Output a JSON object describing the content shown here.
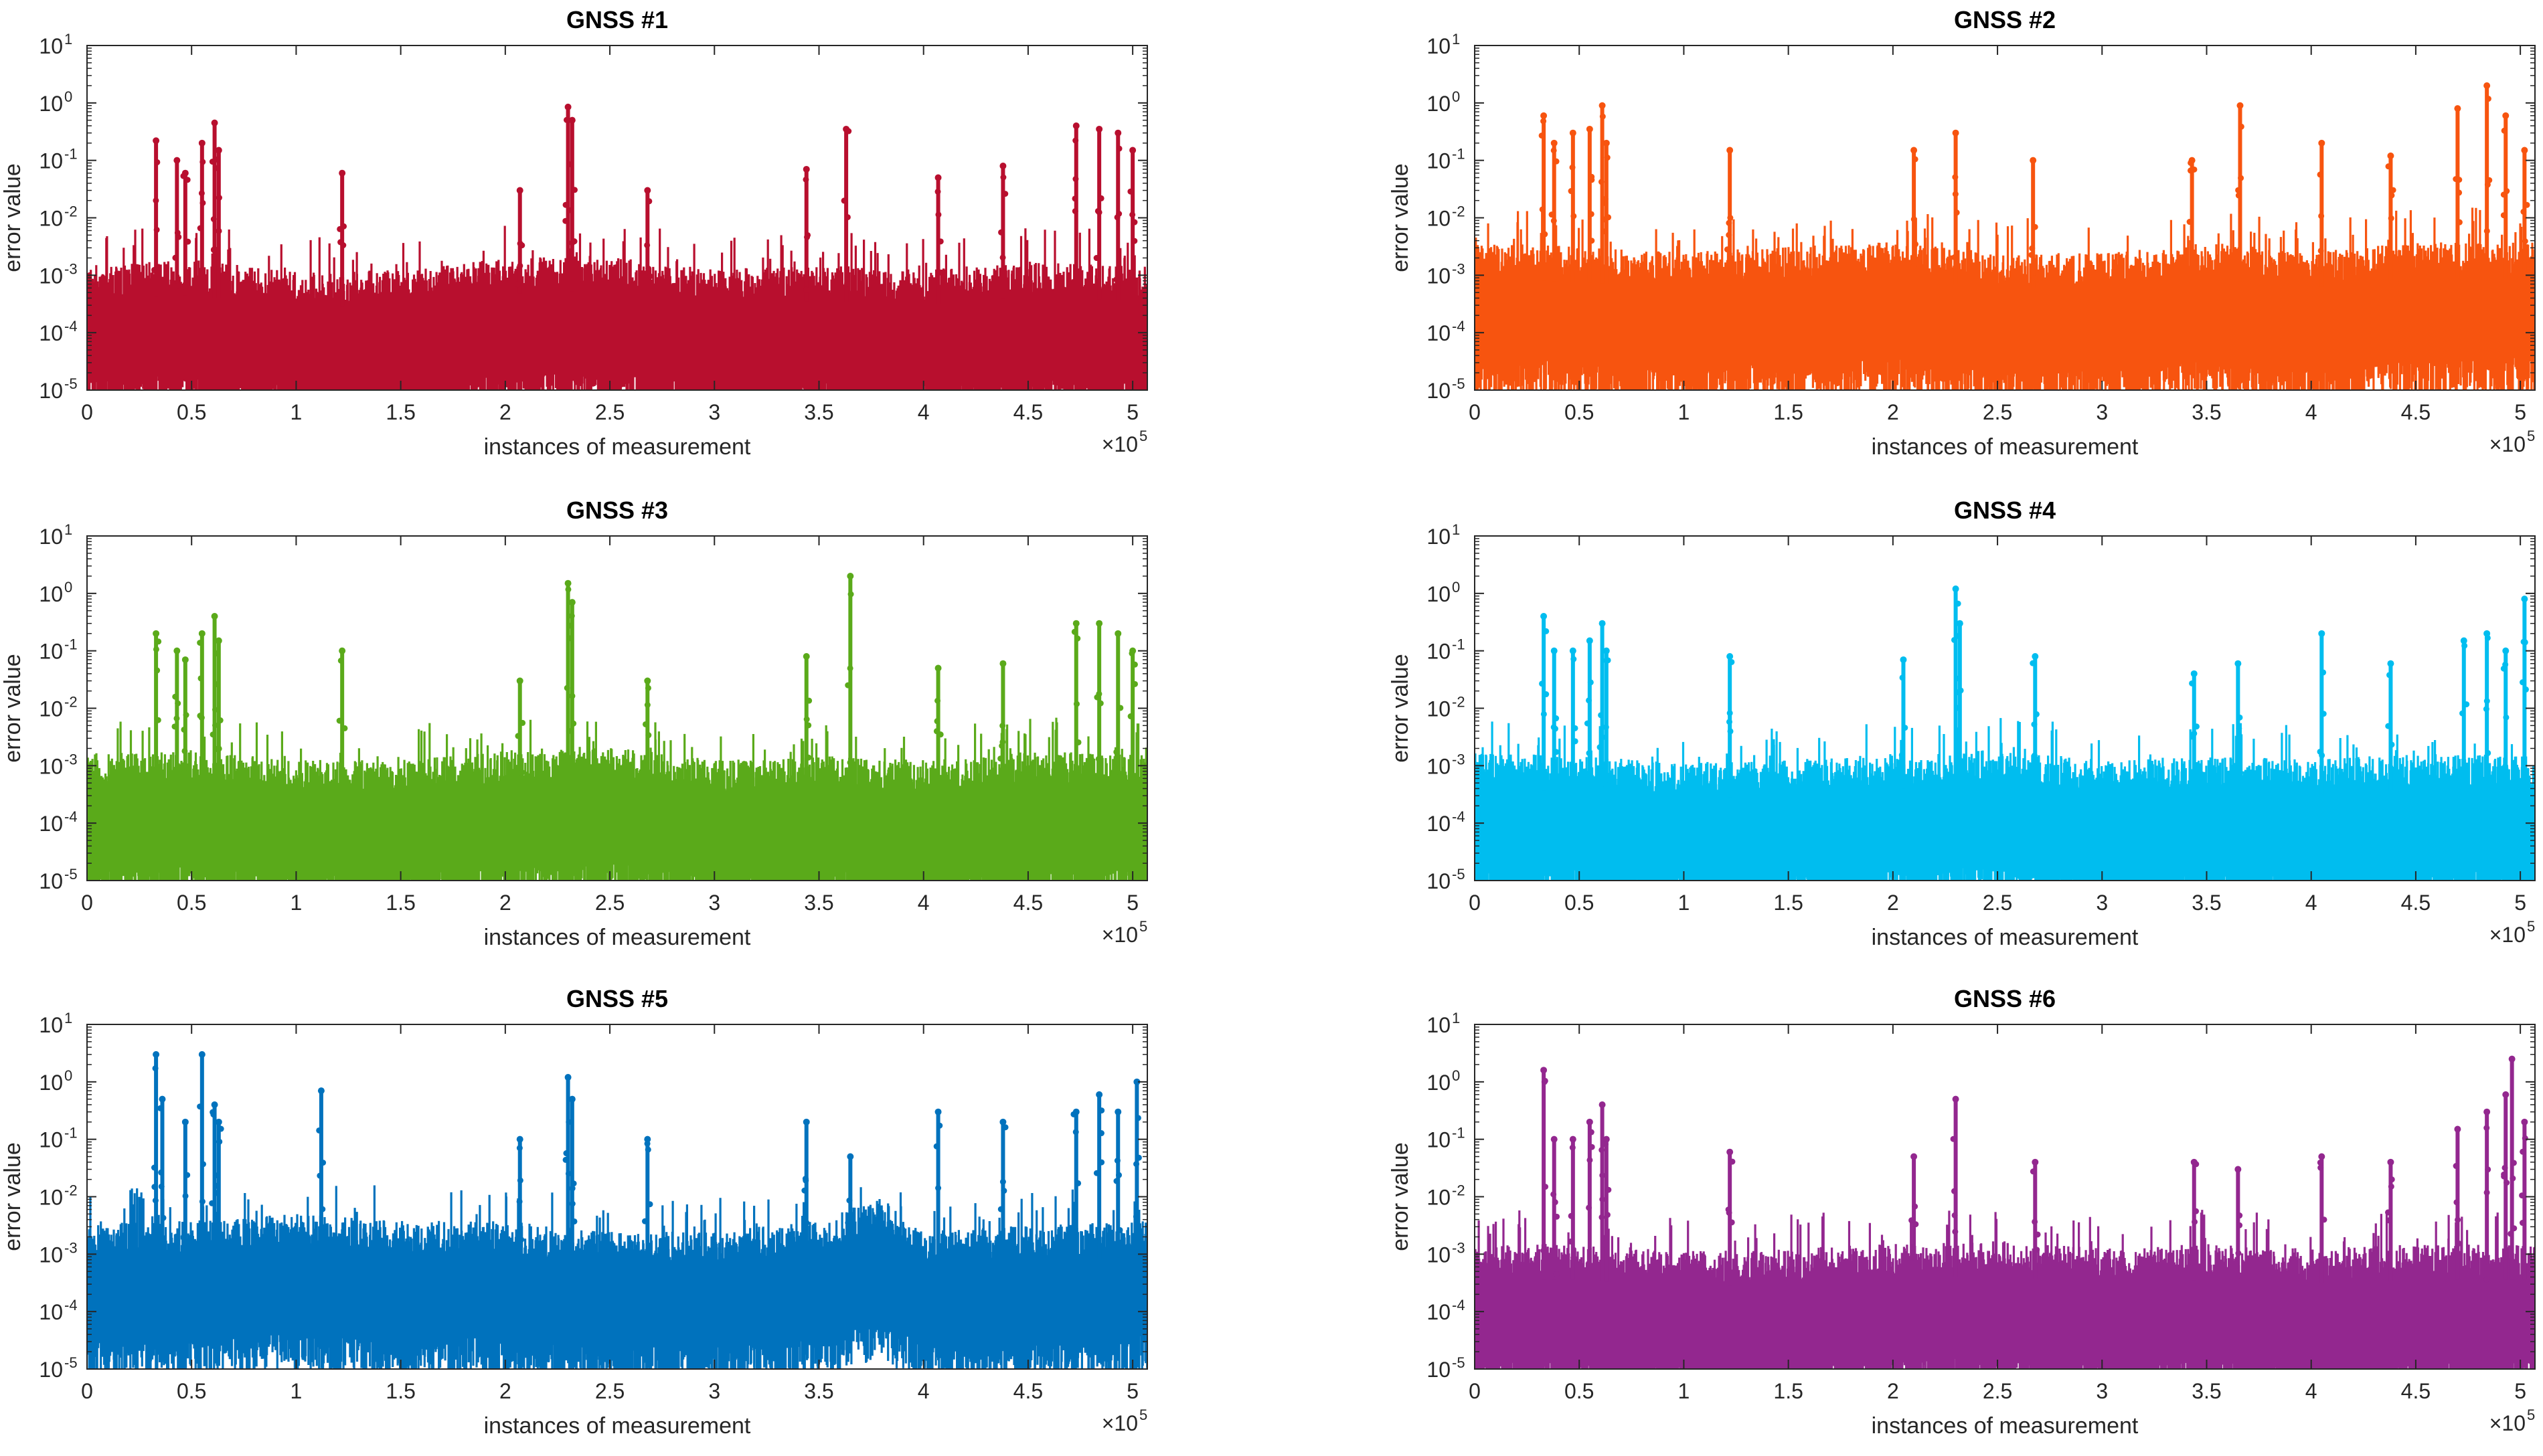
{
  "chart_data": [
    {
      "type": "scatter",
      "title": "GNSS #1",
      "color": "#b80f2e",
      "xlabel": "instances of measurement",
      "ylabel": "error value",
      "xlim": [
        0,
        507000
      ],
      "ylim": [
        1e-05,
        10
      ],
      "yscale": "log",
      "x_multiplier_label": "×10",
      "x_multiplier_exponent": "5",
      "x_tick_labels": [
        "0",
        "0.5",
        "1",
        "1.5",
        "2",
        "2.5",
        "3",
        "3.5",
        "4",
        "4.5",
        "5"
      ],
      "y_tick_labels": [
        {
          "base": "10",
          "exp": "-5"
        },
        {
          "base": "10",
          "exp": "-4"
        },
        {
          "base": "10",
          "exp": "-3"
        },
        {
          "base": "10",
          "exp": "-2"
        },
        {
          "base": "10",
          "exp": "-1"
        },
        {
          "base": "10",
          "exp": "0"
        },
        {
          "base": "10",
          "exp": "1"
        }
      ],
      "bands": [
        [
          0,
          0.00012
        ],
        [
          50000,
          0.00015
        ],
        [
          100000,
          9e-05
        ],
        [
          150000,
          0.0001
        ],
        [
          200000,
          0.00016
        ],
        [
          250000,
          0.00018
        ],
        [
          300000,
          0.0001
        ],
        [
          350000,
          0.00012
        ],
        [
          400000,
          0.0001
        ],
        [
          450000,
          0.00014
        ],
        [
          507000,
          0.00012
        ]
      ],
      "spikes": [
        [
          33000,
          0.22
        ],
        [
          43000,
          0.1
        ],
        [
          47000,
          0.06
        ],
        [
          55000,
          0.2
        ],
        [
          61000,
          0.45
        ],
        [
          63000,
          0.15
        ],
        [
          122000,
          0.06
        ],
        [
          207000,
          0.03
        ],
        [
          230000,
          0.85
        ],
        [
          232000,
          0.5
        ],
        [
          268000,
          0.03
        ],
        [
          344000,
          0.07
        ],
        [
          363000,
          0.35
        ],
        [
          407000,
          0.05
        ],
        [
          438000,
          0.08
        ],
        [
          473000,
          0.4
        ],
        [
          484000,
          0.35
        ],
        [
          493000,
          0.3
        ],
        [
          500000,
          0.15
        ]
      ]
    },
    {
      "type": "scatter",
      "title": "GNSS #2",
      "color": "#f7540f",
      "xlabel": "instances of measurement",
      "ylabel": "error value",
      "xlim": [
        0,
        507000
      ],
      "ylim": [
        1e-05,
        10
      ],
      "yscale": "log",
      "x_multiplier_label": "×10",
      "x_multiplier_exponent": "5",
      "x_tick_labels": [
        "0",
        "0.5",
        "1",
        "1.5",
        "2",
        "2.5",
        "3",
        "3.5",
        "4",
        "4.5",
        "5"
      ],
      "y_tick_labels": [
        {
          "base": "10",
          "exp": "-5"
        },
        {
          "base": "10",
          "exp": "-4"
        },
        {
          "base": "10",
          "exp": "-3"
        },
        {
          "base": "10",
          "exp": "-2"
        },
        {
          "base": "10",
          "exp": "-1"
        },
        {
          "base": "10",
          "exp": "0"
        },
        {
          "base": "10",
          "exp": "1"
        }
      ],
      "bands": [
        [
          0,
          0.0003
        ],
        [
          50000,
          0.00025
        ],
        [
          100000,
          0.0002
        ],
        [
          150000,
          0.00025
        ],
        [
          200000,
          0.0003
        ],
        [
          250000,
          0.0002
        ],
        [
          300000,
          0.0002
        ],
        [
          350000,
          0.0003
        ],
        [
          400000,
          0.0002
        ],
        [
          450000,
          0.0003
        ],
        [
          507000,
          0.0003
        ]
      ],
      "spikes": [
        [
          33000,
          0.6
        ],
        [
          38000,
          0.2
        ],
        [
          47000,
          0.3
        ],
        [
          55000,
          0.35
        ],
        [
          61000,
          0.9
        ],
        [
          63000,
          0.2
        ],
        [
          122000,
          0.15
        ],
        [
          210000,
          0.15
        ],
        [
          230000,
          0.3
        ],
        [
          267000,
          0.1
        ],
        [
          343000,
          0.1
        ],
        [
          366000,
          0.9
        ],
        [
          405000,
          0.2
        ],
        [
          438000,
          0.12
        ],
        [
          470000,
          0.8
        ],
        [
          484000,
          2.0
        ],
        [
          493000,
          0.6
        ],
        [
          502000,
          0.15
        ]
      ]
    },
    {
      "type": "scatter",
      "title": "GNSS #3",
      "color": "#5aaa1a",
      "xlabel": "instances of measurement",
      "ylabel": "error value",
      "xlim": [
        0,
        507000
      ],
      "ylim": [
        1e-05,
        10
      ],
      "yscale": "log",
      "x_multiplier_label": "×10",
      "x_multiplier_exponent": "5",
      "x_tick_labels": [
        "0",
        "0.5",
        "1",
        "1.5",
        "2",
        "2.5",
        "3",
        "3.5",
        "4",
        "4.5",
        "5"
      ],
      "y_tick_labels": [
        {
          "base": "10",
          "exp": "-5"
        },
        {
          "base": "10",
          "exp": "-4"
        },
        {
          "base": "10",
          "exp": "-3"
        },
        {
          "base": "10",
          "exp": "-2"
        },
        {
          "base": "10",
          "exp": "-1"
        },
        {
          "base": "10",
          "exp": "0"
        },
        {
          "base": "10",
          "exp": "1"
        }
      ],
      "bands": [
        [
          0,
          0.00013
        ],
        [
          50000,
          0.00015
        ],
        [
          100000,
          0.0001
        ],
        [
          150000,
          0.0001
        ],
        [
          200000,
          0.00015
        ],
        [
          250000,
          0.00018
        ],
        [
          300000,
          0.0001
        ],
        [
          350000,
          0.00012
        ],
        [
          400000,
          0.0001
        ],
        [
          450000,
          0.00014
        ],
        [
          507000,
          0.00013
        ]
      ],
      "spikes": [
        [
          33000,
          0.2
        ],
        [
          43000,
          0.1
        ],
        [
          47000,
          0.07
        ],
        [
          55000,
          0.2
        ],
        [
          61000,
          0.4
        ],
        [
          63000,
          0.15
        ],
        [
          122000,
          0.1
        ],
        [
          207000,
          0.03
        ],
        [
          230000,
          1.5
        ],
        [
          232000,
          0.7
        ],
        [
          268000,
          0.03
        ],
        [
          344000,
          0.08
        ],
        [
          365000,
          2.0
        ],
        [
          407000,
          0.05
        ],
        [
          438000,
          0.06
        ],
        [
          473000,
          0.3
        ],
        [
          484000,
          0.3
        ],
        [
          493000,
          0.2
        ],
        [
          500000,
          0.1
        ]
      ]
    },
    {
      "type": "scatter",
      "title": "GNSS #4",
      "color": "#00bdef",
      "xlabel": "instances of measurement",
      "ylabel": "error value",
      "xlim": [
        0,
        507000
      ],
      "ylim": [
        1e-05,
        10
      ],
      "yscale": "log",
      "x_multiplier_label": "×10",
      "x_multiplier_exponent": "5",
      "x_tick_labels": [
        "0",
        "0.5",
        "1",
        "1.5",
        "2",
        "2.5",
        "3",
        "3.5",
        "4",
        "4.5",
        "5"
      ],
      "y_tick_labels": [
        {
          "base": "10",
          "exp": "-5"
        },
        {
          "base": "10",
          "exp": "-4"
        },
        {
          "base": "10",
          "exp": "-3"
        },
        {
          "base": "10",
          "exp": "-2"
        },
        {
          "base": "10",
          "exp": "-1"
        },
        {
          "base": "10",
          "exp": "0"
        },
        {
          "base": "10",
          "exp": "1"
        }
      ],
      "bands": [
        [
          0,
          0.00013
        ],
        [
          50000,
          0.00012
        ],
        [
          100000,
          9e-05
        ],
        [
          150000,
          0.0001
        ],
        [
          200000,
          0.00013
        ],
        [
          250000,
          0.00015
        ],
        [
          300000,
          0.0001
        ],
        [
          350000,
          0.00012
        ],
        [
          400000,
          0.0001
        ],
        [
          450000,
          0.00013
        ],
        [
          507000,
          0.00012
        ]
      ],
      "spikes": [
        [
          33000,
          0.4
        ],
        [
          38000,
          0.1
        ],
        [
          47000,
          0.1
        ],
        [
          55000,
          0.15
        ],
        [
          61000,
          0.3
        ],
        [
          63000,
          0.1
        ],
        [
          122000,
          0.08
        ],
        [
          205000,
          0.07
        ],
        [
          230000,
          1.2
        ],
        [
          232000,
          0.3
        ],
        [
          268000,
          0.08
        ],
        [
          344000,
          0.04
        ],
        [
          365000,
          0.06
        ],
        [
          405000,
          0.2
        ],
        [
          438000,
          0.06
        ],
        [
          473000,
          0.15
        ],
        [
          484000,
          0.2
        ],
        [
          493000,
          0.1
        ],
        [
          502000,
          0.8
        ]
      ]
    },
    {
      "type": "scatter",
      "title": "GNSS #5",
      "color": "#0072bd",
      "xlabel": "instances of measurement",
      "ylabel": "error value",
      "xlim": [
        0,
        507000
      ],
      "ylim": [
        1e-05,
        10
      ],
      "yscale": "log",
      "x_multiplier_label": "×10",
      "x_multiplier_exponent": "5",
      "x_tick_labels": [
        "0",
        "0.5",
        "1",
        "1.5",
        "2",
        "2.5",
        "3",
        "3.5",
        "4",
        "4.5",
        "5"
      ],
      "y_tick_labels": [
        {
          "base": "10",
          "exp": "-5"
        },
        {
          "base": "10",
          "exp": "-4"
        },
        {
          "base": "10",
          "exp": "-3"
        },
        {
          "base": "10",
          "exp": "-2"
        },
        {
          "base": "10",
          "exp": "-1"
        },
        {
          "base": "10",
          "exp": "0"
        },
        {
          "base": "10",
          "exp": "1"
        }
      ],
      "bands": [
        [
          0,
          0.0003
        ],
        [
          50000,
          0.0003
        ],
        [
          100000,
          0.0004
        ],
        [
          150000,
          0.0003
        ],
        [
          200000,
          0.0003
        ],
        [
          250000,
          0.0002
        ],
        [
          300000,
          0.0002
        ],
        [
          350000,
          0.0003
        ],
        [
          380000,
          0.0008
        ],
        [
          400000,
          0.0002
        ],
        [
          450000,
          0.00025
        ],
        [
          507000,
          0.0003
        ]
      ],
      "spikes": [
        [
          33000,
          3.0
        ],
        [
          36000,
          0.5
        ],
        [
          47000,
          0.2
        ],
        [
          55000,
          3.0
        ],
        [
          61000,
          0.4
        ],
        [
          63000,
          0.2
        ],
        [
          112000,
          0.7
        ],
        [
          207000,
          0.1
        ],
        [
          230000,
          1.2
        ],
        [
          232000,
          0.5
        ],
        [
          268000,
          0.1
        ],
        [
          344000,
          0.2
        ],
        [
          365000,
          0.05
        ],
        [
          407000,
          0.3
        ],
        [
          438000,
          0.2
        ],
        [
          473000,
          0.3
        ],
        [
          484000,
          0.6
        ],
        [
          493000,
          0.3
        ],
        [
          502000,
          1.0
        ]
      ]
    },
    {
      "type": "scatter",
      "title": "GNSS #6",
      "color": "#93278f",
      "xlabel": "instances of measurement",
      "ylabel": "error value",
      "xlim": [
        0,
        507000
      ],
      "ylim": [
        1e-05,
        10
      ],
      "yscale": "log",
      "x_multiplier_label": "×10",
      "x_multiplier_exponent": "5",
      "x_tick_labels": [
        "0",
        "0.5",
        "1",
        "1.5",
        "2",
        "2.5",
        "3",
        "3.5",
        "4",
        "4.5",
        "5"
      ],
      "y_tick_labels": [
        {
          "base": "10",
          "exp": "-5"
        },
        {
          "base": "10",
          "exp": "-4"
        },
        {
          "base": "10",
          "exp": "-3"
        },
        {
          "base": "10",
          "exp": "-2"
        },
        {
          "base": "10",
          "exp": "-1"
        },
        {
          "base": "10",
          "exp": "0"
        },
        {
          "base": "10",
          "exp": "1"
        }
      ],
      "bands": [
        [
          0,
          0.00012
        ],
        [
          50000,
          0.00012
        ],
        [
          100000,
          9e-05
        ],
        [
          150000,
          0.0001
        ],
        [
          200000,
          0.00012
        ],
        [
          250000,
          0.00014
        ],
        [
          300000,
          0.0001
        ],
        [
          350000,
          0.00012
        ],
        [
          400000,
          0.0001
        ],
        [
          450000,
          0.00012
        ],
        [
          507000,
          0.00012
        ]
      ],
      "spikes": [
        [
          33000,
          1.6
        ],
        [
          38000,
          0.1
        ],
        [
          47000,
          0.1
        ],
        [
          55000,
          0.2
        ],
        [
          61000,
          0.4
        ],
        [
          63000,
          0.1
        ],
        [
          122000,
          0.06
        ],
        [
          210000,
          0.05
        ],
        [
          230000,
          0.5
        ],
        [
          268000,
          0.04
        ],
        [
          344000,
          0.04
        ],
        [
          365000,
          0.03
        ],
        [
          405000,
          0.05
        ],
        [
          438000,
          0.04
        ],
        [
          470000,
          0.15
        ],
        [
          484000,
          0.3
        ],
        [
          493000,
          0.6
        ],
        [
          496000,
          2.5
        ],
        [
          502000,
          0.2
        ]
      ]
    }
  ]
}
